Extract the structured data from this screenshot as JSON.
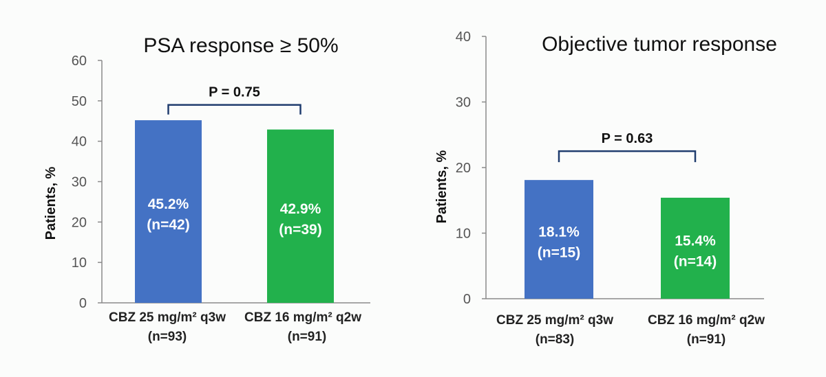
{
  "chart_data": [
    {
      "type": "bar",
      "title": "PSA response ≥ 50%",
      "ylabel": "Patients, %",
      "ylim": [
        0,
        60
      ],
      "yticks": [
        0,
        10,
        20,
        30,
        40,
        50,
        60
      ],
      "categories": [
        {
          "label": "CBZ 25 mg/m² q3w",
          "sublabel": "(n=93)"
        },
        {
          "label": "CBZ 16 mg/m² q2w",
          "sublabel": "(n=91)"
        }
      ],
      "values": [
        45.2,
        42.9
      ],
      "bar_labels": [
        {
          "pct": "45.2%",
          "n": "(n=42)"
        },
        {
          "pct": "42.9%",
          "n": "(n=39)"
        }
      ],
      "colors": [
        "#4472c4",
        "#22b14c"
      ],
      "comparison": {
        "label": "P = 0.75",
        "level": 49
      }
    },
    {
      "type": "bar",
      "title": "Objective tumor response",
      "ylabel": "Patients, %",
      "ylim": [
        0,
        40
      ],
      "yticks": [
        0,
        10,
        20,
        30,
        40
      ],
      "categories": [
        {
          "label": "CBZ 25 mg/m² q3w",
          "sublabel": "(n=83)"
        },
        {
          "label": "CBZ 16 mg/m² q2w",
          "sublabel": "(n=91)"
        }
      ],
      "values": [
        18.1,
        15.4
      ],
      "bar_labels": [
        {
          "pct": "18.1%",
          "n": "(n=15)"
        },
        {
          "pct": "15.4%",
          "n": "(n=14)"
        }
      ],
      "colors": [
        "#4472c4",
        "#22b14c"
      ],
      "comparison": {
        "label": "P = 0.63",
        "level": 22.5
      }
    }
  ]
}
